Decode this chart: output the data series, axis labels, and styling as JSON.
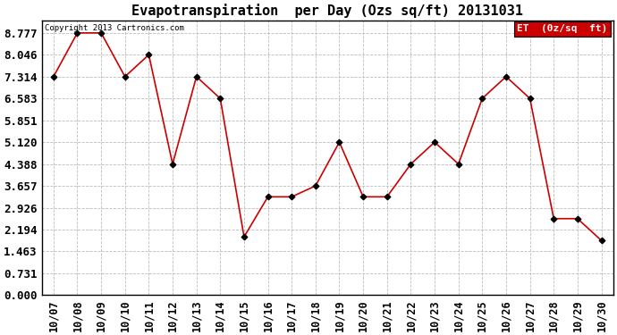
{
  "title": "Evapotranspiration  per Day (Ozs sq/ft) 20131031",
  "dates": [
    "10/07",
    "10/08",
    "10/09",
    "10/10",
    "10/11",
    "10/12",
    "10/13",
    "10/14",
    "10/15",
    "10/16",
    "10/17",
    "10/18",
    "10/19",
    "10/20",
    "10/21",
    "10/22",
    "10/23",
    "10/24",
    "10/25",
    "10/26",
    "10/27",
    "10/28",
    "10/29",
    "10/30"
  ],
  "values": [
    7.314,
    8.777,
    8.777,
    7.314,
    8.046,
    4.388,
    7.314,
    6.583,
    1.951,
    3.291,
    3.291,
    3.657,
    5.12,
    3.291,
    3.291,
    4.388,
    5.12,
    4.388,
    6.583,
    7.314,
    6.583,
    2.56,
    2.56,
    1.829
  ],
  "line_color": "#cc0000",
  "marker": "D",
  "marker_size": 3.5,
  "marker_color": "#000000",
  "yticks": [
    0.0,
    0.731,
    1.463,
    2.194,
    2.926,
    3.657,
    4.388,
    5.12,
    5.851,
    6.583,
    7.314,
    8.046,
    8.777
  ],
  "ylim": [
    0.0,
    9.2
  ],
  "grid_color": "#bbbbbb",
  "background_color": "#ffffff",
  "legend_label": "ET  (0z/sq  ft)",
  "legend_bg": "#cc0000",
  "legend_text_color": "#ffffff",
  "copyright_text": "Copyright 2013 Cartronics.com",
  "copyright_color": "#000000",
  "title_fontsize": 11,
  "tick_fontsize": 8.5,
  "ytick_fontsize": 9
}
